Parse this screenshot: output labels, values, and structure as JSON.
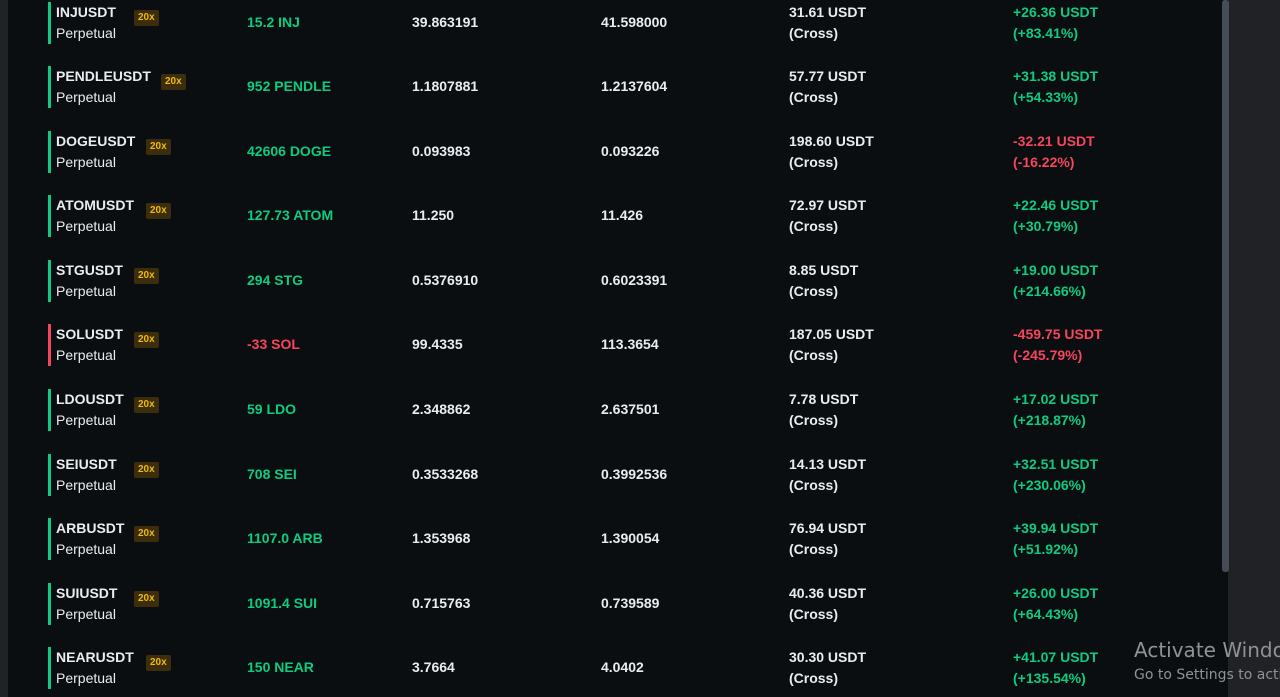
{
  "positions": [
    {
      "symbol": "INJUSDT",
      "leverage": "20x",
      "type": "Perpetual",
      "side": "long",
      "size": "15.2 INJ",
      "entry_price": "39.863191",
      "mark_price": "41.598000",
      "margin": "31.61 USDT",
      "margin_mode": "(Cross)",
      "pnl": "+26.36 USDT",
      "roe": "(+83.41%)",
      "pnl_sign": "positive"
    },
    {
      "symbol": "PENDLEUSDT",
      "leverage": "20x",
      "type": "Perpetual",
      "side": "long",
      "size": "952 PENDLE",
      "entry_price": "1.1807881",
      "mark_price": "1.2137604",
      "margin": "57.77 USDT",
      "margin_mode": "(Cross)",
      "pnl": "+31.38 USDT",
      "roe": "(+54.33%)",
      "pnl_sign": "positive"
    },
    {
      "symbol": "DOGEUSDT",
      "leverage": "20x",
      "type": "Perpetual",
      "side": "long",
      "size": "42606 DOGE",
      "entry_price": "0.093983",
      "mark_price": "0.093226",
      "margin": "198.60 USDT",
      "margin_mode": "(Cross)",
      "pnl": "-32.21 USDT",
      "roe": "(-16.22%)",
      "pnl_sign": "negative"
    },
    {
      "symbol": "ATOMUSDT",
      "leverage": "20x",
      "type": "Perpetual",
      "side": "long",
      "size": "127.73 ATOM",
      "entry_price": "11.250",
      "mark_price": "11.426",
      "margin": "72.97 USDT",
      "margin_mode": "(Cross)",
      "pnl": "+22.46 USDT",
      "roe": "(+30.79%)",
      "pnl_sign": "positive"
    },
    {
      "symbol": "STGUSDT",
      "leverage": "20x",
      "type": "Perpetual",
      "side": "long",
      "size": "294 STG",
      "entry_price": "0.5376910",
      "mark_price": "0.6023391",
      "margin": "8.85 USDT",
      "margin_mode": "(Cross)",
      "pnl": "+19.00 USDT",
      "roe": "(+214.66%)",
      "pnl_sign": "positive"
    },
    {
      "symbol": "SOLUSDT",
      "leverage": "20x",
      "type": "Perpetual",
      "side": "short",
      "size": "-33 SOL",
      "entry_price": "99.4335",
      "mark_price": "113.3654",
      "margin": "187.05 USDT",
      "margin_mode": "(Cross)",
      "pnl": "-459.75 USDT",
      "roe": "(-245.79%)",
      "pnl_sign": "negative"
    },
    {
      "symbol": "LDOUSDT",
      "leverage": "20x",
      "type": "Perpetual",
      "side": "long",
      "size": "59 LDO",
      "entry_price": "2.348862",
      "mark_price": "2.637501",
      "margin": "7.78 USDT",
      "margin_mode": "(Cross)",
      "pnl": "+17.02 USDT",
      "roe": "(+218.87%)",
      "pnl_sign": "positive"
    },
    {
      "symbol": "SEIUSDT",
      "leverage": "20x",
      "type": "Perpetual",
      "side": "long",
      "size": "708 SEI",
      "entry_price": "0.3533268",
      "mark_price": "0.3992536",
      "margin": "14.13 USDT",
      "margin_mode": "(Cross)",
      "pnl": "+32.51 USDT",
      "roe": "(+230.06%)",
      "pnl_sign": "positive"
    },
    {
      "symbol": "ARBUSDT",
      "leverage": "20x",
      "type": "Perpetual",
      "side": "long",
      "size": "1107.0 ARB",
      "entry_price": "1.353968",
      "mark_price": "1.390054",
      "margin": "76.94 USDT",
      "margin_mode": "(Cross)",
      "pnl": "+39.94 USDT",
      "roe": "(+51.92%)",
      "pnl_sign": "positive"
    },
    {
      "symbol": "SUIUSDT",
      "leverage": "20x",
      "type": "Perpetual",
      "side": "long",
      "size": "1091.4 SUI",
      "entry_price": "0.715763",
      "mark_price": "0.739589",
      "margin": "40.36 USDT",
      "margin_mode": "(Cross)",
      "pnl": "+26.00 USDT",
      "roe": "(+64.43%)",
      "pnl_sign": "positive"
    },
    {
      "symbol": "NEARUSDT",
      "leverage": "20x",
      "type": "Perpetual",
      "side": "long",
      "size": "150 NEAR",
      "entry_price": "3.7664",
      "mark_price": "4.0402",
      "margin": "30.30 USDT",
      "margin_mode": "(Cross)",
      "pnl": "+41.07 USDT",
      "roe": "(+135.54%)",
      "pnl_sign": "positive"
    }
  ],
  "watermark": {
    "line1": "Activate Window",
    "line2": "Go to Settings to activ"
  },
  "colors": {
    "positive": "#0ecb81",
    "negative": "#f6465d",
    "leverage_badge": "#f0b90b",
    "background": "#0b0e11"
  }
}
